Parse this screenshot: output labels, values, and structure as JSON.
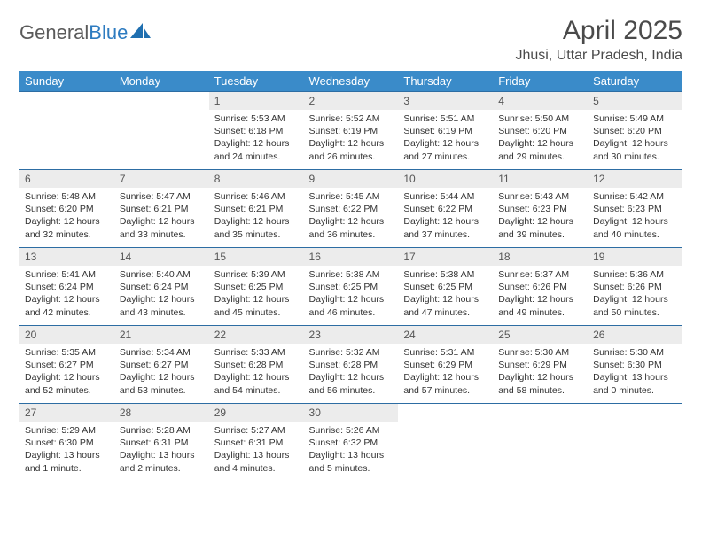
{
  "brand": {
    "part1": "General",
    "part2": "Blue"
  },
  "title": "April 2025",
  "location": "Jhusi, Uttar Pradesh, India",
  "colors": {
    "header_bg": "#3a8bc9",
    "header_text": "#ffffff",
    "row_border": "#2d6da3",
    "daynum_bg": "#ececec",
    "body_text": "#333333",
    "title_text": "#4a4a4a",
    "logo_gray": "#5a5a5a",
    "logo_blue": "#2d7bc0",
    "logo_icon": "#1f6fb0"
  },
  "fonts": {
    "title_size": 30,
    "location_size": 16,
    "header_size": 13,
    "daynum_size": 12,
    "body_size": 10.5
  },
  "day_headers": [
    "Sunday",
    "Monday",
    "Tuesday",
    "Wednesday",
    "Thursday",
    "Friday",
    "Saturday"
  ],
  "weeks": [
    [
      {
        "n": "",
        "sr": "",
        "ss": "",
        "dl": "",
        "empty": true
      },
      {
        "n": "",
        "sr": "",
        "ss": "",
        "dl": "",
        "empty": true
      },
      {
        "n": "1",
        "sr": "Sunrise: 5:53 AM",
        "ss": "Sunset: 6:18 PM",
        "dl": "Daylight: 12 hours and 24 minutes."
      },
      {
        "n": "2",
        "sr": "Sunrise: 5:52 AM",
        "ss": "Sunset: 6:19 PM",
        "dl": "Daylight: 12 hours and 26 minutes."
      },
      {
        "n": "3",
        "sr": "Sunrise: 5:51 AM",
        "ss": "Sunset: 6:19 PM",
        "dl": "Daylight: 12 hours and 27 minutes."
      },
      {
        "n": "4",
        "sr": "Sunrise: 5:50 AM",
        "ss": "Sunset: 6:20 PM",
        "dl": "Daylight: 12 hours and 29 minutes."
      },
      {
        "n": "5",
        "sr": "Sunrise: 5:49 AM",
        "ss": "Sunset: 6:20 PM",
        "dl": "Daylight: 12 hours and 30 minutes."
      }
    ],
    [
      {
        "n": "6",
        "sr": "Sunrise: 5:48 AM",
        "ss": "Sunset: 6:20 PM",
        "dl": "Daylight: 12 hours and 32 minutes."
      },
      {
        "n": "7",
        "sr": "Sunrise: 5:47 AM",
        "ss": "Sunset: 6:21 PM",
        "dl": "Daylight: 12 hours and 33 minutes."
      },
      {
        "n": "8",
        "sr": "Sunrise: 5:46 AM",
        "ss": "Sunset: 6:21 PM",
        "dl": "Daylight: 12 hours and 35 minutes."
      },
      {
        "n": "9",
        "sr": "Sunrise: 5:45 AM",
        "ss": "Sunset: 6:22 PM",
        "dl": "Daylight: 12 hours and 36 minutes."
      },
      {
        "n": "10",
        "sr": "Sunrise: 5:44 AM",
        "ss": "Sunset: 6:22 PM",
        "dl": "Daylight: 12 hours and 37 minutes."
      },
      {
        "n": "11",
        "sr": "Sunrise: 5:43 AM",
        "ss": "Sunset: 6:23 PM",
        "dl": "Daylight: 12 hours and 39 minutes."
      },
      {
        "n": "12",
        "sr": "Sunrise: 5:42 AM",
        "ss": "Sunset: 6:23 PM",
        "dl": "Daylight: 12 hours and 40 minutes."
      }
    ],
    [
      {
        "n": "13",
        "sr": "Sunrise: 5:41 AM",
        "ss": "Sunset: 6:24 PM",
        "dl": "Daylight: 12 hours and 42 minutes."
      },
      {
        "n": "14",
        "sr": "Sunrise: 5:40 AM",
        "ss": "Sunset: 6:24 PM",
        "dl": "Daylight: 12 hours and 43 minutes."
      },
      {
        "n": "15",
        "sr": "Sunrise: 5:39 AM",
        "ss": "Sunset: 6:25 PM",
        "dl": "Daylight: 12 hours and 45 minutes."
      },
      {
        "n": "16",
        "sr": "Sunrise: 5:38 AM",
        "ss": "Sunset: 6:25 PM",
        "dl": "Daylight: 12 hours and 46 minutes."
      },
      {
        "n": "17",
        "sr": "Sunrise: 5:38 AM",
        "ss": "Sunset: 6:25 PM",
        "dl": "Daylight: 12 hours and 47 minutes."
      },
      {
        "n": "18",
        "sr": "Sunrise: 5:37 AM",
        "ss": "Sunset: 6:26 PM",
        "dl": "Daylight: 12 hours and 49 minutes."
      },
      {
        "n": "19",
        "sr": "Sunrise: 5:36 AM",
        "ss": "Sunset: 6:26 PM",
        "dl": "Daylight: 12 hours and 50 minutes."
      }
    ],
    [
      {
        "n": "20",
        "sr": "Sunrise: 5:35 AM",
        "ss": "Sunset: 6:27 PM",
        "dl": "Daylight: 12 hours and 52 minutes."
      },
      {
        "n": "21",
        "sr": "Sunrise: 5:34 AM",
        "ss": "Sunset: 6:27 PM",
        "dl": "Daylight: 12 hours and 53 minutes."
      },
      {
        "n": "22",
        "sr": "Sunrise: 5:33 AM",
        "ss": "Sunset: 6:28 PM",
        "dl": "Daylight: 12 hours and 54 minutes."
      },
      {
        "n": "23",
        "sr": "Sunrise: 5:32 AM",
        "ss": "Sunset: 6:28 PM",
        "dl": "Daylight: 12 hours and 56 minutes."
      },
      {
        "n": "24",
        "sr": "Sunrise: 5:31 AM",
        "ss": "Sunset: 6:29 PM",
        "dl": "Daylight: 12 hours and 57 minutes."
      },
      {
        "n": "25",
        "sr": "Sunrise: 5:30 AM",
        "ss": "Sunset: 6:29 PM",
        "dl": "Daylight: 12 hours and 58 minutes."
      },
      {
        "n": "26",
        "sr": "Sunrise: 5:30 AM",
        "ss": "Sunset: 6:30 PM",
        "dl": "Daylight: 13 hours and 0 minutes."
      }
    ],
    [
      {
        "n": "27",
        "sr": "Sunrise: 5:29 AM",
        "ss": "Sunset: 6:30 PM",
        "dl": "Daylight: 13 hours and 1 minute."
      },
      {
        "n": "28",
        "sr": "Sunrise: 5:28 AM",
        "ss": "Sunset: 6:31 PM",
        "dl": "Daylight: 13 hours and 2 minutes."
      },
      {
        "n": "29",
        "sr": "Sunrise: 5:27 AM",
        "ss": "Sunset: 6:31 PM",
        "dl": "Daylight: 13 hours and 4 minutes."
      },
      {
        "n": "30",
        "sr": "Sunrise: 5:26 AM",
        "ss": "Sunset: 6:32 PM",
        "dl": "Daylight: 13 hours and 5 minutes."
      },
      {
        "n": "",
        "sr": "",
        "ss": "",
        "dl": "",
        "empty": true
      },
      {
        "n": "",
        "sr": "",
        "ss": "",
        "dl": "",
        "empty": true
      },
      {
        "n": "",
        "sr": "",
        "ss": "",
        "dl": "",
        "empty": true
      }
    ]
  ]
}
